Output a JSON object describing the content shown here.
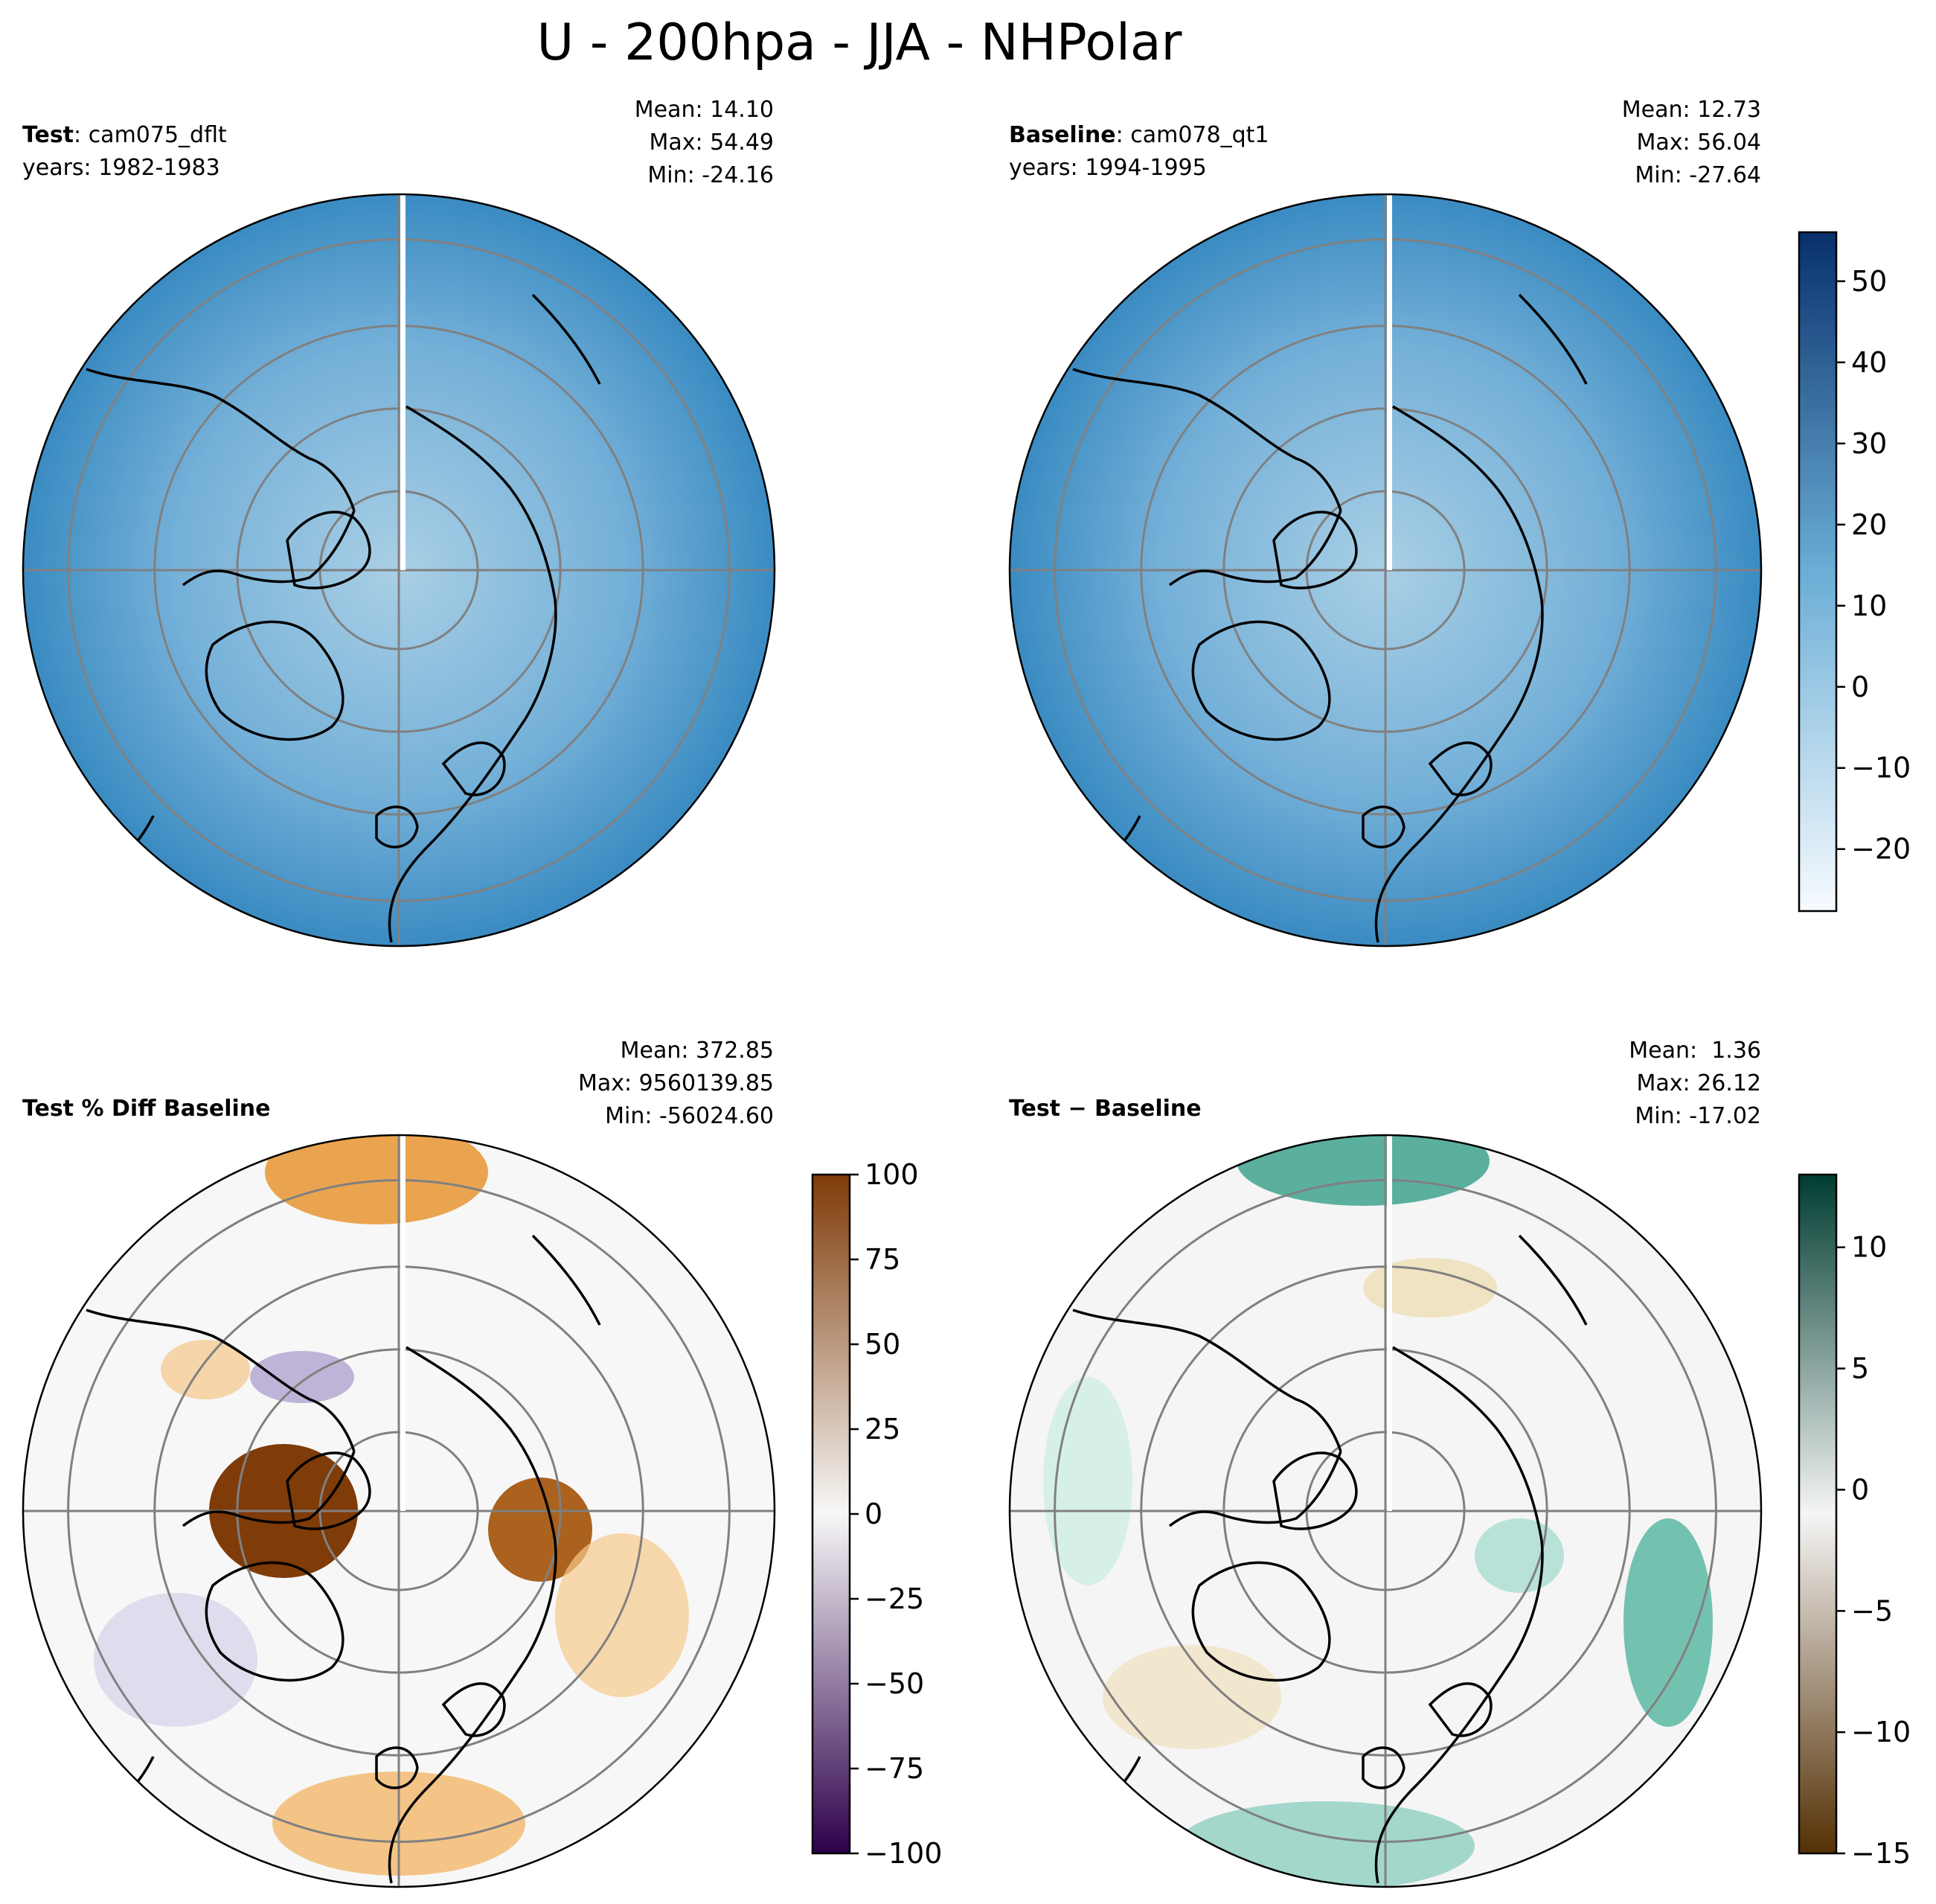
{
  "suptitle": "U - 200hpa - JJA - NHPolar",
  "chart_data": [
    {
      "type": "heatmap",
      "projection": "north-polar-stereographic",
      "title_bold": "Test",
      "title_sep": ": ",
      "title_rest": "cam075_dflt",
      "subtitle": "years: 1982-1983",
      "stats": {
        "mean": "Mean: 14.10",
        "max": "Max: 54.49",
        "min": "Min: -24.16"
      },
      "colormap": "Blues",
      "colorbar_shared_with_next": true
    },
    {
      "type": "heatmap",
      "projection": "north-polar-stereographic",
      "title_bold": "Baseline",
      "title_sep": ": ",
      "title_rest": "cam078_qt1",
      "subtitle": "years: 1994-1995",
      "stats": {
        "mean": "Mean: 12.73",
        "max": "Max: 56.04",
        "min": "Min: -27.64"
      },
      "colormap": "Blues",
      "colorbar": {
        "range": [
          -27.64,
          56.04
        ],
        "ticks": [
          50,
          40,
          30,
          20,
          10,
          0,
          -10,
          -20
        ]
      }
    },
    {
      "type": "heatmap",
      "projection": "north-polar-stereographic",
      "title_bold": "Test % Diff Baseline",
      "title_sep": "",
      "title_rest": "",
      "subtitle": "",
      "stats": {
        "mean": "Mean: 372.85",
        "max": "Max: 9560139.85",
        "min": "Min: -56024.60"
      },
      "colormap": "PuOr_r",
      "colorbar": {
        "range": [
          -100,
          100
        ],
        "ticks": [
          100,
          75,
          50,
          25,
          0,
          -25,
          -50,
          -75,
          -100
        ]
      }
    },
    {
      "type": "heatmap",
      "projection": "north-polar-stereographic",
      "title_bold": "Test − Baseline",
      "title_sep": "",
      "title_rest": "",
      "subtitle": "",
      "stats": {
        "mean": "Mean:  1.36",
        "max": "Max: 26.12",
        "min": "Min: -17.02"
      },
      "colormap": "BrBG",
      "colorbar": {
        "range": [
          -15,
          13
        ],
        "ticks": [
          10,
          5,
          0,
          -5,
          -10,
          -15
        ]
      }
    }
  ],
  "colors": {
    "blues_low": "#f7fbff",
    "blues_mid": "#6baed6",
    "blues_high": "#08306b",
    "puor_low": "#2d004b",
    "puor_mid": "#f7f7f7",
    "puor_high": "#7f3b08",
    "brbg_low": "#543005",
    "brbg_mid": "#f5f5f5",
    "brbg_high": "#003c30",
    "graticule": "#808080",
    "coastline": "#000000"
  }
}
